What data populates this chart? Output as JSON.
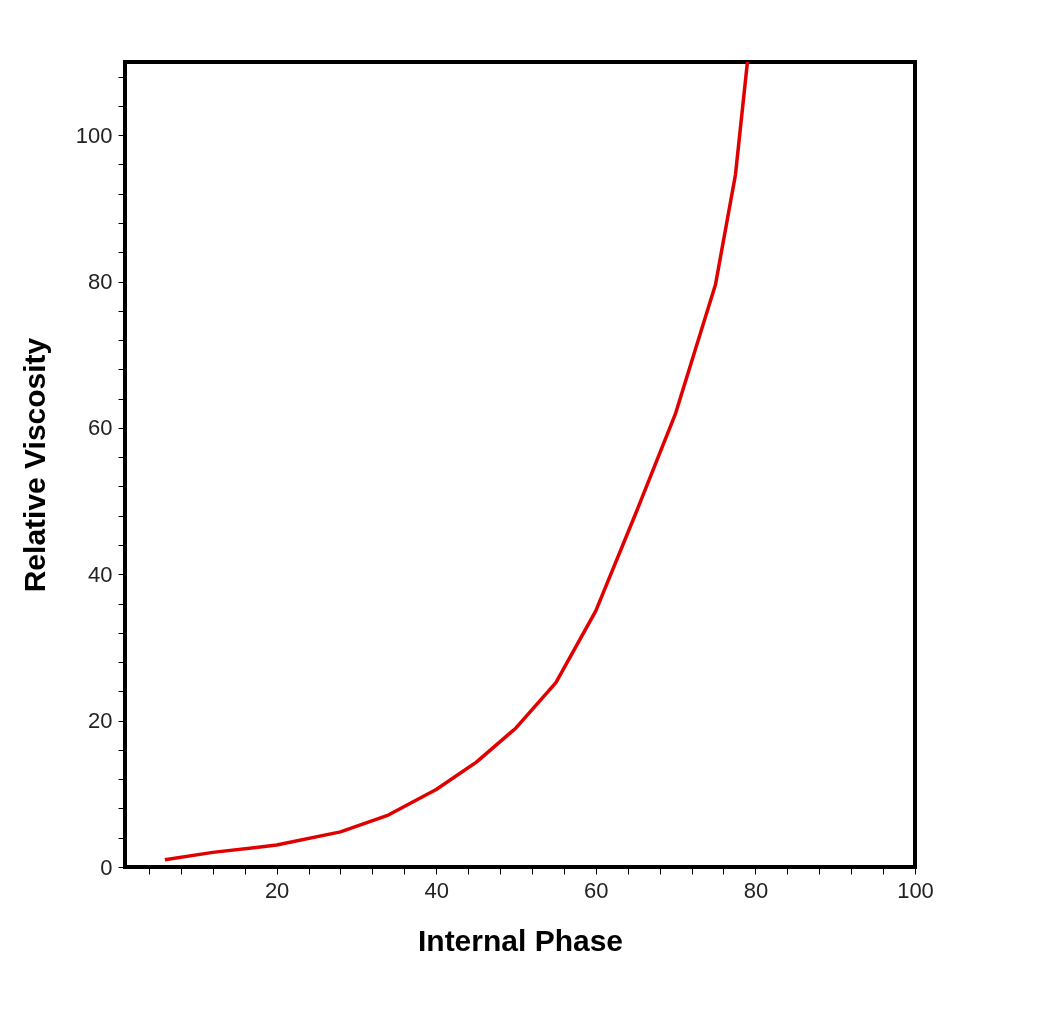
{
  "chart_data": {
    "type": "line",
    "xlabel": "Internal Phase",
    "ylabel": "Relative Viscosity",
    "x": [
      6,
      12,
      20,
      28,
      34,
      40,
      45,
      50,
      55,
      60,
      65,
      70,
      75,
      77.5,
      79
    ],
    "series": [
      {
        "color": "#e00000",
        "values": [
          1,
          2,
          3,
          4.8,
          7.1,
          10.6,
          14.3,
          19,
          25.2,
          35,
          48.3,
          62,
          79.6,
          94.6,
          110
        ]
      }
    ],
    "xlim": [
      1,
      100
    ],
    "ylim": [
      0,
      110
    ],
    "xticks": [
      {
        "value": 4,
        "label": null
      },
      {
        "value": 8,
        "label": null
      },
      {
        "value": 12,
        "label": null
      },
      {
        "value": 16,
        "label": null
      },
      20,
      {
        "value": 24,
        "label": null
      },
      {
        "value": 28,
        "label": null
      },
      {
        "value": 32,
        "label": null
      },
      {
        "value": 36,
        "label": null
      },
      40,
      {
        "value": 44,
        "label": null
      },
      {
        "value": 48,
        "label": null
      },
      {
        "value": 52,
        "label": null
      },
      {
        "value": 56,
        "label": null
      },
      60,
      {
        "value": 64,
        "label": null
      },
      {
        "value": 68,
        "label": null
      },
      {
        "value": 72,
        "label": null
      },
      {
        "value": 76,
        "label": null
      },
      80,
      {
        "value": 84,
        "label": null
      },
      {
        "value": 88,
        "label": null
      },
      {
        "value": 92,
        "label": null
      },
      {
        "value": 96,
        "label": null
      },
      100
    ],
    "yticks": [
      0,
      {
        "value": 4,
        "label": null
      },
      {
        "value": 8,
        "label": null
      },
      {
        "value": 12,
        "label": null
      },
      {
        "value": 16,
        "label": null
      },
      20,
      {
        "value": 24,
        "label": null
      },
      {
        "value": 28,
        "label": null
      },
      {
        "value": 32,
        "label": null
      },
      {
        "value": 36,
        "label": null
      },
      40,
      {
        "value": 44,
        "label": null
      },
      {
        "value": 48,
        "label": null
      },
      {
        "value": 52,
        "label": null
      },
      {
        "value": 56,
        "label": null
      },
      60,
      {
        "value": 64,
        "label": null
      },
      {
        "value": 68,
        "label": null
      },
      {
        "value": 72,
        "label": null
      },
      {
        "value": 76,
        "label": null
      },
      80,
      {
        "value": 84,
        "label": null
      },
      {
        "value": 88,
        "label": null
      },
      {
        "value": 92,
        "label": null
      },
      {
        "value": 96,
        "label": null
      },
      100,
      {
        "value": 104,
        "label": null
      },
      {
        "value": 108,
        "label": null
      }
    ],
    "grid": false,
    "marker": "none",
    "line_style": "solid"
  }
}
